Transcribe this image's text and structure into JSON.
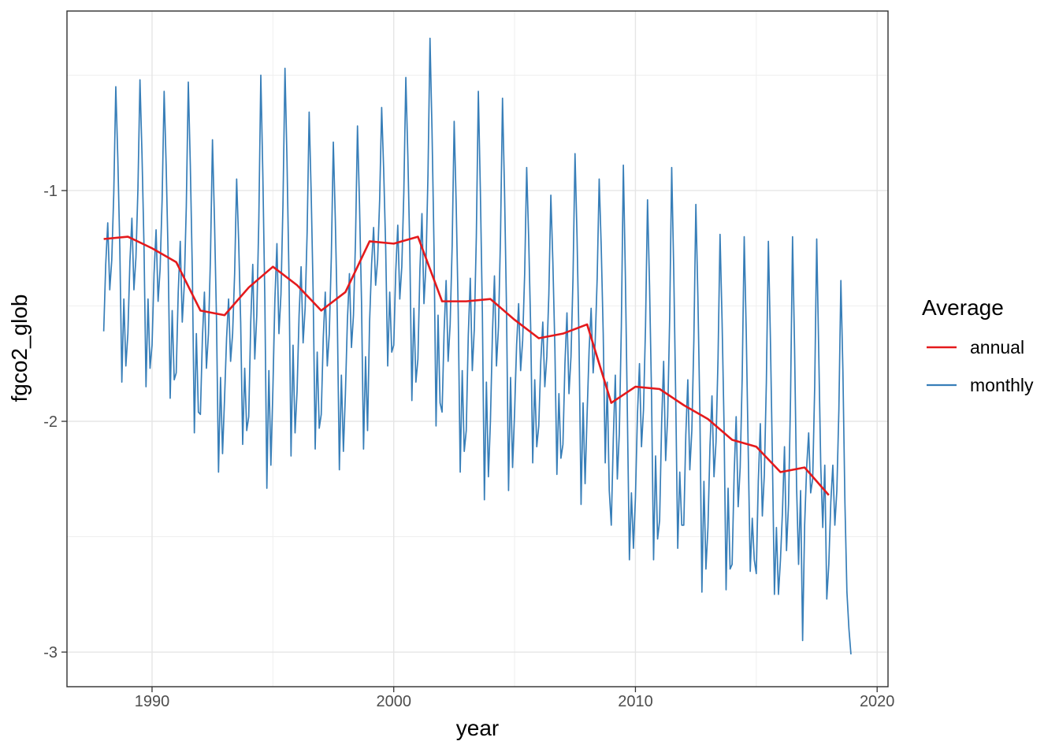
{
  "chart_data": {
    "type": "line",
    "title": "",
    "xlabel": "year",
    "ylabel": "fgco2_glob",
    "xlim": [
      1986.48,
      2020.45
    ],
    "ylim": [
      -3.15,
      -0.222
    ],
    "grid": true,
    "x_ticks": [
      {
        "value": 1990,
        "label": "1990"
      },
      {
        "value": 2000,
        "label": "2000"
      },
      {
        "value": 2010,
        "label": "2010"
      },
      {
        "value": 2020,
        "label": "2020"
      }
    ],
    "y_ticks": [
      {
        "value": -1,
        "label": "-1"
      },
      {
        "value": -2,
        "label": "-2"
      },
      {
        "value": -3,
        "label": "-3"
      }
    ],
    "x_minor_gridlines": [
      1995,
      2005,
      2015
    ],
    "y_minor_gridlines": [
      -0.5,
      -1.5,
      -2.5
    ],
    "legend": {
      "title": "Average",
      "position": "right",
      "items": [
        {
          "label": "annual",
          "color": "#E41A1C"
        },
        {
          "label": "monthly",
          "color": "#377EB8"
        }
      ]
    },
    "series": [
      {
        "name": "monthly",
        "color": "#377EB8",
        "stroke_width": 1.7,
        "start_year": 1988,
        "points_per_year": 12,
        "values": [
          -1.61,
          -1.32,
          -1.14,
          -1.43,
          -1.3,
          -1.01,
          -0.55,
          -0.86,
          -1.25,
          -1.83,
          -1.47,
          -1.76,
          -1.62,
          -1.31,
          -1.12,
          -1.43,
          -1.29,
          -0.99,
          -0.52,
          -0.84,
          -1.24,
          -1.85,
          -1.47,
          -1.77,
          -1.67,
          -1.36,
          -1.17,
          -1.48,
          -1.34,
          -1.04,
          -0.57,
          -0.89,
          -1.29,
          -1.9,
          -1.52,
          -1.82,
          -1.79,
          -1.44,
          -1.22,
          -1.57,
          -1.41,
          -1.07,
          -0.53,
          -0.89,
          -1.35,
          -2.05,
          -1.62,
          -1.96,
          -1.97,
          -1.64,
          -1.44,
          -1.77,
          -1.62,
          -1.29,
          -0.78,
          -1.13,
          -1.56,
          -2.22,
          -1.81,
          -2.14,
          -1.9,
          -1.64,
          -1.47,
          -1.74,
          -1.62,
          -1.36,
          -0.95,
          -1.22,
          -1.57,
          -2.1,
          -1.77,
          -2.04,
          -1.98,
          -1.57,
          -1.32,
          -1.73,
          -1.54,
          -1.13,
          -0.5,
          -0.93,
          -1.47,
          -2.29,
          -1.78,
          -2.19,
          -1.86,
          -1.47,
          -1.23,
          -1.62,
          -1.45,
          -1.06,
          -0.47,
          -0.87,
          -1.38,
          -2.15,
          -1.67,
          -2.05,
          -1.87,
          -1.54,
          -1.33,
          -1.66,
          -1.51,
          -1.18,
          -0.66,
          -1.01,
          -1.45,
          -2.12,
          -1.7,
          -2.03,
          -1.97,
          -1.64,
          -1.44,
          -1.76,
          -1.62,
          -1.29,
          -0.79,
          -1.13,
          -1.56,
          -2.21,
          -1.8,
          -2.13,
          -1.88,
          -1.56,
          -1.36,
          -1.68,
          -1.54,
          -1.22,
          -0.72,
          -1.06,
          -1.48,
          -2.12,
          -1.72,
          -2.04,
          -1.57,
          -1.32,
          -1.16,
          -1.41,
          -1.3,
          -1.04,
          -0.64,
          -0.91,
          -1.25,
          -1.76,
          -1.44,
          -1.7,
          -1.67,
          -1.35,
          -1.15,
          -1.47,
          -1.33,
          -1.01,
          -0.51,
          -0.85,
          -1.27,
          -1.91,
          -1.51,
          -1.83,
          -1.73,
          -1.34,
          -1.1,
          -1.49,
          -1.32,
          -0.93,
          -0.34,
          -0.74,
          -1.25,
          -2.02,
          -1.54,
          -1.92,
          -1.96,
          -1.61,
          -1.39,
          -1.74,
          -1.58,
          -1.24,
          -0.7,
          -1.06,
          -1.52,
          -2.22,
          -1.78,
          -2.13,
          -2.04,
          -1.63,
          -1.38,
          -1.78,
          -1.6,
          -1.2,
          -0.57,
          -1.0,
          -1.53,
          -2.34,
          -1.83,
          -2.24,
          -2.0,
          -1.62,
          -1.37,
          -1.76,
          -1.59,
          -1.2,
          -0.6,
          -1.0,
          -1.52,
          -2.3,
          -1.81,
          -2.2,
          -1.96,
          -1.67,
          -1.49,
          -1.78,
          -1.65,
          -1.36,
          -0.9,
          -1.21,
          -1.6,
          -2.18,
          -1.82,
          -2.11,
          -2.02,
          -1.74,
          -1.57,
          -1.85,
          -1.72,
          -1.45,
          -1.02,
          -1.31,
          -1.68,
          -2.23,
          -1.88,
          -2.16,
          -2.1,
          -1.75,
          -1.53,
          -1.88,
          -1.72,
          -1.38,
          -0.84,
          -1.2,
          -1.66,
          -2.36,
          -1.92,
          -2.27,
          -1.97,
          -1.69,
          -1.51,
          -1.79,
          -1.66,
          -1.38,
          -0.95,
          -1.24,
          -1.62,
          -2.18,
          -1.83,
          -2.3,
          -2.45,
          -2.08,
          -1.8,
          -2.25,
          -2.05,
          -1.59,
          -0.89,
          -1.37,
          -1.97,
          -2.6,
          -2.31,
          -2.55,
          -2.33,
          -1.97,
          -1.75,
          -2.11,
          -1.95,
          -1.59,
          -1.04,
          -1.41,
          -1.89,
          -2.6,
          -2.15,
          -2.51,
          -2.43,
          -2.01,
          -1.74,
          -2.17,
          -1.98,
          -1.55,
          -0.9,
          -1.34,
          -1.9,
          -2.55,
          -2.22,
          -2.45,
          -2.45,
          -2.06,
          -1.82,
          -2.21,
          -2.04,
          -1.65,
          -1.06,
          -1.46,
          -1.97,
          -2.74,
          -2.26,
          -2.64,
          -2.46,
          -2.11,
          -1.89,
          -2.24,
          -2.09,
          -1.73,
          -1.19,
          -1.56,
          -2.02,
          -2.73,
          -2.29,
          -2.64,
          -2.62,
          -2.23,
          -1.98,
          -2.37,
          -2.2,
          -1.81,
          -1.2,
          -1.61,
          -2.13,
          -2.65,
          -2.42,
          -2.6,
          -2.66,
          -2.26,
          -2.01,
          -2.41,
          -2.23,
          -1.83,
          -1.22,
          -1.64,
          -2.16,
          -2.75,
          -2.46,
          -2.75,
          -2.6,
          -2.39,
          -2.11,
          -2.56,
          -2.36,
          -1.9,
          -1.2,
          -1.68,
          -2.28,
          -2.62,
          -2.3,
          -2.95,
          -2.45,
          -2.2,
          -2.05,
          -2.31,
          -2.25,
          -1.85,
          -1.21,
          -1.7,
          -2.19,
          -2.46,
          -2.19,
          -2.77,
          -2.62,
          -2.35,
          -2.19,
          -2.45,
          -2.3,
          -1.95,
          -1.39,
          -1.78,
          -2.35,
          -2.74,
          -2.9,
          -3.01
        ]
      },
      {
        "name": "annual",
        "color": "#E41A1C",
        "stroke_width": 2.6,
        "x": [
          1988,
          1989,
          1990,
          1991,
          1992,
          1993,
          1994,
          1995,
          1996,
          1997,
          1998,
          1999,
          2000,
          2001,
          2002,
          2003,
          2004,
          2005,
          2006,
          2007,
          2008,
          2009,
          2010,
          2011,
          2012,
          2013,
          2014,
          2015,
          2016,
          2017,
          2018
        ],
        "values": [
          -1.21,
          -1.2,
          -1.25,
          -1.31,
          -1.52,
          -1.54,
          -1.42,
          -1.33,
          -1.41,
          -1.52,
          -1.44,
          -1.22,
          -1.23,
          -1.2,
          -1.48,
          -1.48,
          -1.47,
          -1.56,
          -1.64,
          -1.62,
          -1.58,
          -1.92,
          -1.85,
          -1.86,
          -1.93,
          -1.99,
          -2.08,
          -2.11,
          -2.22,
          -2.2,
          -2.32
        ]
      }
    ]
  }
}
